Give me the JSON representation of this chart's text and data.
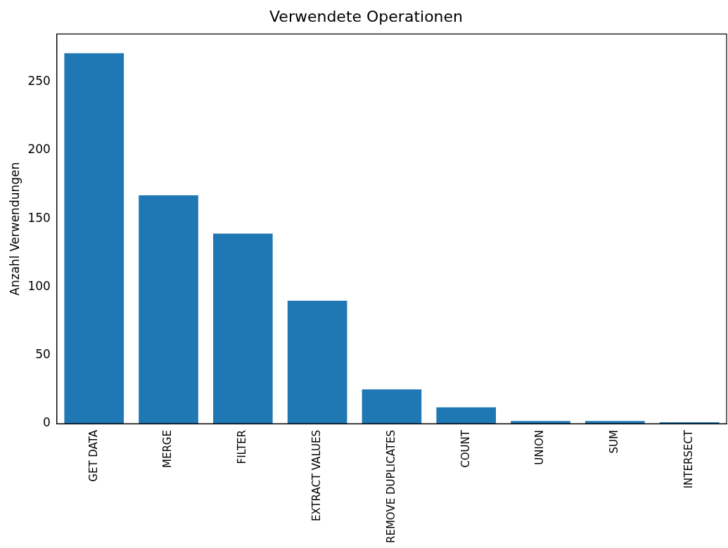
{
  "chart_data": {
    "type": "bar",
    "title": "Verwendete Operationen",
    "ylabel": "Anzahl Verwendungen",
    "categories": [
      "GET DATA",
      "MERGE",
      "FILTER",
      "EXTRACT VALUES",
      "REMOVE DUPLICATES",
      "COUNT",
      "UNION",
      "SUM",
      "INTERSECT"
    ],
    "values": [
      271,
      167,
      139,
      90,
      25,
      12,
      2,
      2,
      1
    ],
    "color": "#1f77b4",
    "ylim": [
      0,
      285
    ],
    "yticks": [
      0,
      50,
      100,
      150,
      200,
      250
    ],
    "grid": false,
    "legend": false
  }
}
